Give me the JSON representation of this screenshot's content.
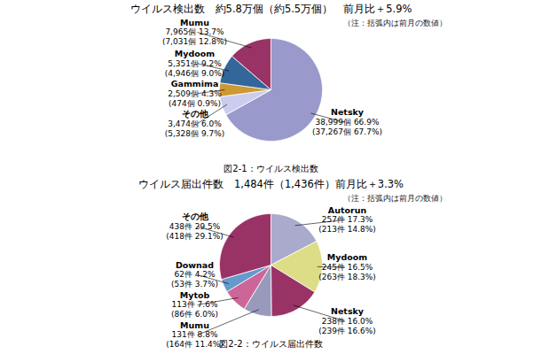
{
  "chart_data": [
    {
      "type": "pie",
      "title": "ウイルス検出数　約5.8万個（約5.5万個）　前月比＋5.9%",
      "subtitle": "（注：括弧内は前月の数値）",
      "caption": "図2-1：ウイルス検出数",
      "categories": [
        "Netsky",
        "その他",
        "Gammima",
        "Mydoom",
        "Mumu"
      ],
      "values": [
        38999,
        3474,
        2509,
        5351,
        7965
      ],
      "colors": [
        "#9999cc",
        "#ccccee",
        "#cc9933",
        "#336699",
        "#993366"
      ],
      "value_labels": [
        "38,999個 66.9%",
        "3,474個 6.0%",
        "2,509個 4.3%",
        "5,351個 9.2%",
        "7,965個 13.7%"
      ],
      "annotations": [
        "(37,267個 67.7%)",
        "(5,328個 9.7%)",
        "(474個 0.9%)",
        "(4,946個 9.0%)",
        "(7,031個 12.8%)"
      ]
    },
    {
      "type": "pie",
      "title": "ウイルス届出件数　1,484件（1,436件）前月比＋3.3%",
      "subtitle": "（注：括弧内は前月の数値）",
      "caption": "図2-2：ウイルス届出件数",
      "categories": [
        "Autorun",
        "Mydoom",
        "Netsky",
        "Mumu",
        "Mytob",
        "Downad",
        "その他"
      ],
      "values": [
        257,
        245,
        238,
        131,
        113,
        62,
        438
      ],
      "colors": [
        "#aaaacc",
        "#dddd88",
        "#993366",
        "#9999bb",
        "#cc6699",
        "#6699cc",
        "#993366"
      ],
      "value_labels": [
        "257件 17.3%",
        "245件 16.5%",
        "238件 16.0%",
        "131件 8.8%",
        "113件 7.6%",
        "62件 4.2%",
        "438件 29.5%"
      ],
      "annotations": [
        "(213件 14.8%)",
        "(263件 18.3%)",
        "(239件 16.6%)",
        "(164件 11.4%)",
        "(86件 6.0%)",
        "(53件 3.7%)",
        "(418件 29.1%)"
      ]
    }
  ]
}
